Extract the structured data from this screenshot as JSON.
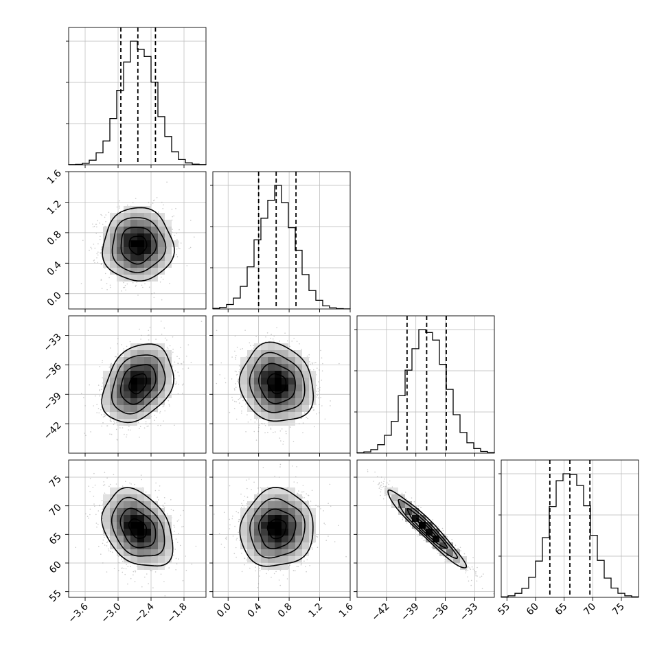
{
  "chart_data": {
    "type": "corner",
    "parameters": [
      {
        "id": "p0",
        "range": [
          -3.9,
          -1.4
        ],
        "ticks": [
          -3.6,
          -3.0,
          -2.4,
          -1.8
        ],
        "tick_labels": [
          "−3.6",
          "−3.0",
          "−2.4",
          "−1.8"
        ],
        "quantiles": [
          -2.95,
          -2.64,
          -2.32
        ],
        "mean": -2.64,
        "sd": 0.32
      },
      {
        "id": "p1",
        "range": [
          -0.2,
          1.6
        ],
        "ticks": [
          0.0,
          0.4,
          0.8,
          1.2,
          1.6
        ],
        "tick_labels": [
          "0.0",
          "0.4",
          "0.8",
          "1.2",
          "1.6"
        ],
        "quantiles": [
          0.4,
          0.63,
          0.89
        ],
        "mean": 0.64,
        "sd": 0.24
      },
      {
        "id": "p2",
        "range": [
          -45.0,
          -31.0
        ],
        "ticks": [
          -42,
          -39,
          -36,
          -33
        ],
        "tick_labels": [
          "−42",
          "−39",
          "−36",
          "−33"
        ],
        "quantiles": [
          -39.9,
          -37.9,
          -35.9
        ],
        "mean": -37.9,
        "sd": 2.0
      },
      {
        "id": "p3",
        "range": [
          54.0,
          78.0
        ],
        "ticks": [
          55,
          60,
          65,
          70,
          75
        ],
        "tick_labels": [
          "55",
          "60",
          "65",
          "70",
          "75"
        ],
        "quantiles": [
          62.5,
          66.0,
          69.5
        ],
        "mean": 66.0,
        "sd": 3.4
      }
    ],
    "correlations": [
      [
        1.0,
        0.0,
        0.3,
        -0.32
      ],
      [
        0.0,
        1.0,
        -0.12,
        0.05
      ],
      [
        0.3,
        -0.12,
        1.0,
        -0.96
      ],
      [
        -0.32,
        0.05,
        -0.96,
        1.0
      ]
    ],
    "histogram_bins": 20,
    "contour_levels_sigma": [
      0.5,
      1.0,
      1.5,
      2.0
    ],
    "grid": true,
    "title": "",
    "axis_labels": []
  }
}
